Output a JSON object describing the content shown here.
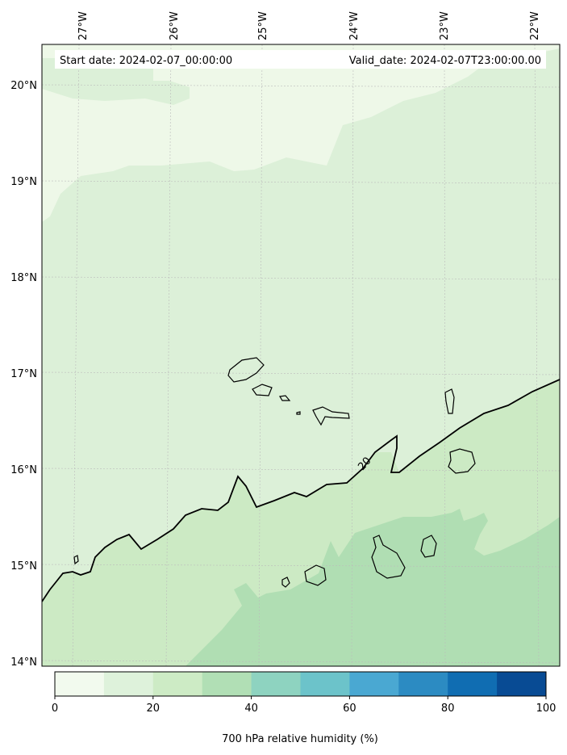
{
  "header": {
    "start_date": "Start date: 2024-02-07_00:00:00",
    "valid_date": "Valid_date: 2024-02-07T23:00:00.00"
  },
  "lon_labels": [
    "27°W",
    "26°W",
    "25°W",
    "24°W",
    "23°W",
    "22°W"
  ],
  "lat_labels": [
    "20°N",
    "19°N",
    "18°N",
    "17°N",
    "16°N",
    "15°N",
    "14°N"
  ],
  "contour_label": "20",
  "colorbar": {
    "colors": [
      "#f2faee",
      "#def2db",
      "#cdebc5",
      "#b1dfb5",
      "#8ed3c0",
      "#6cc3ca",
      "#4aa8d2",
      "#2c8bc2",
      "#106db2",
      "#084b94"
    ],
    "ticks": [
      "0",
      "20",
      "40",
      "60",
      "80",
      "100"
    ],
    "label": "700 hPa relative humidity (%)"
  },
  "fill_colors": {
    "band_0_10": "#eef8e8",
    "band_10_20": "#dcf0d8",
    "band_20_30": "#cceac4",
    "band_30_40": "#b0deb3"
  }
}
